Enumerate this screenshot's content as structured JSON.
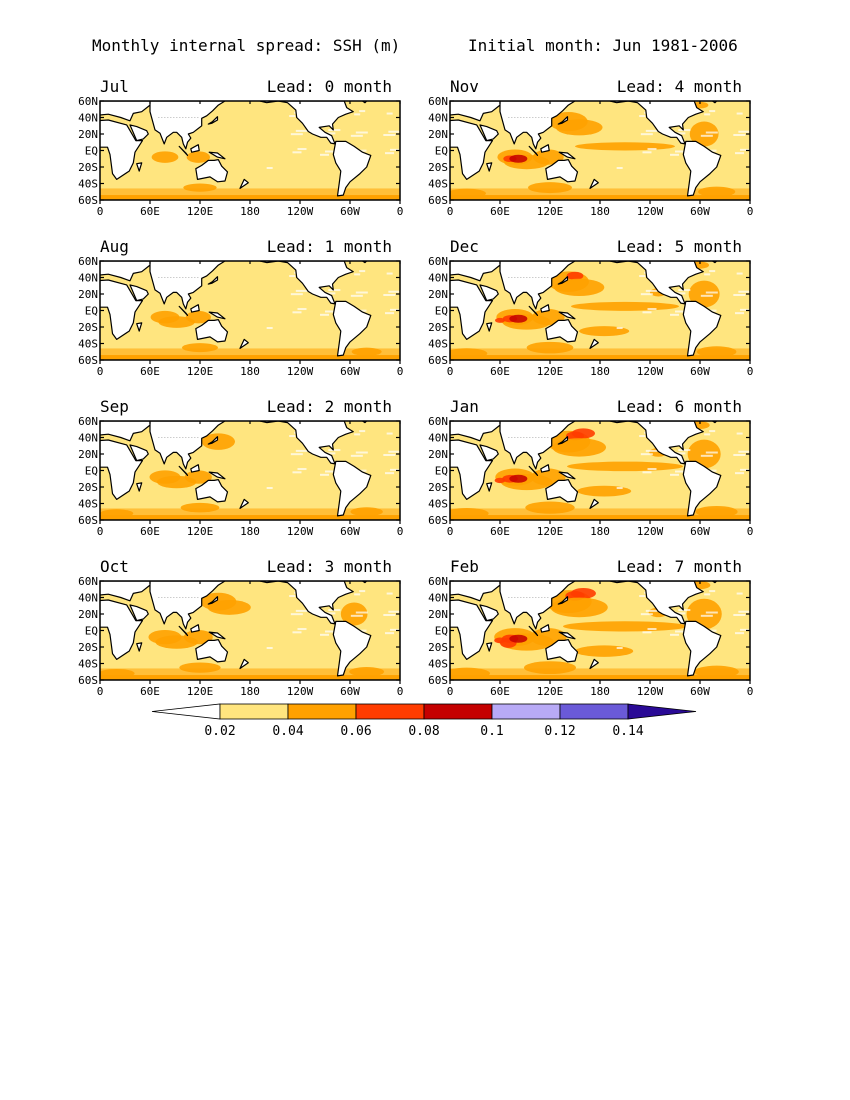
{
  "header": {
    "left": "Monthly internal spread: SSH (m)",
    "right": "Initial month: Jun 1981-2006"
  },
  "axes": {
    "lat_labels": [
      "60N",
      "40N",
      "20N",
      "EQ",
      "20S",
      "40S",
      "60S"
    ],
    "lon_labels": [
      "0",
      "60E",
      "120E",
      "180",
      "120W",
      "60W",
      "0"
    ],
    "lat_range": [
      -60,
      60
    ],
    "lon_range": [
      0,
      360
    ]
  },
  "panels": [
    {
      "month": "Jul",
      "lead": "Lead: 0 month",
      "intensity": 0
    },
    {
      "month": "Nov",
      "lead": "Lead: 4 month",
      "intensity": 4
    },
    {
      "month": "Aug",
      "lead": "Lead: 1 month",
      "intensity": 1
    },
    {
      "month": "Dec",
      "lead": "Lead: 5 month",
      "intensity": 5
    },
    {
      "month": "Sep",
      "lead": "Lead: 2 month",
      "intensity": 2
    },
    {
      "month": "Jan",
      "lead": "Lead: 6 month",
      "intensity": 6
    },
    {
      "month": "Oct",
      "lead": "Lead: 3 month",
      "intensity": 3
    },
    {
      "month": "Feb",
      "lead": "Lead: 7 month",
      "intensity": 7
    }
  ],
  "colorbar": {
    "labels": [
      "0.02",
      "0.04",
      "0.06",
      "0.08",
      "0.1",
      "0.12",
      "0.14"
    ],
    "colors": [
      "#ffffff",
      "#ffe57f",
      "#ffa100",
      "#ff3c00",
      "#c40000",
      "#b8aaf6",
      "#6a5ad8",
      "#2a0a96"
    ]
  }
}
